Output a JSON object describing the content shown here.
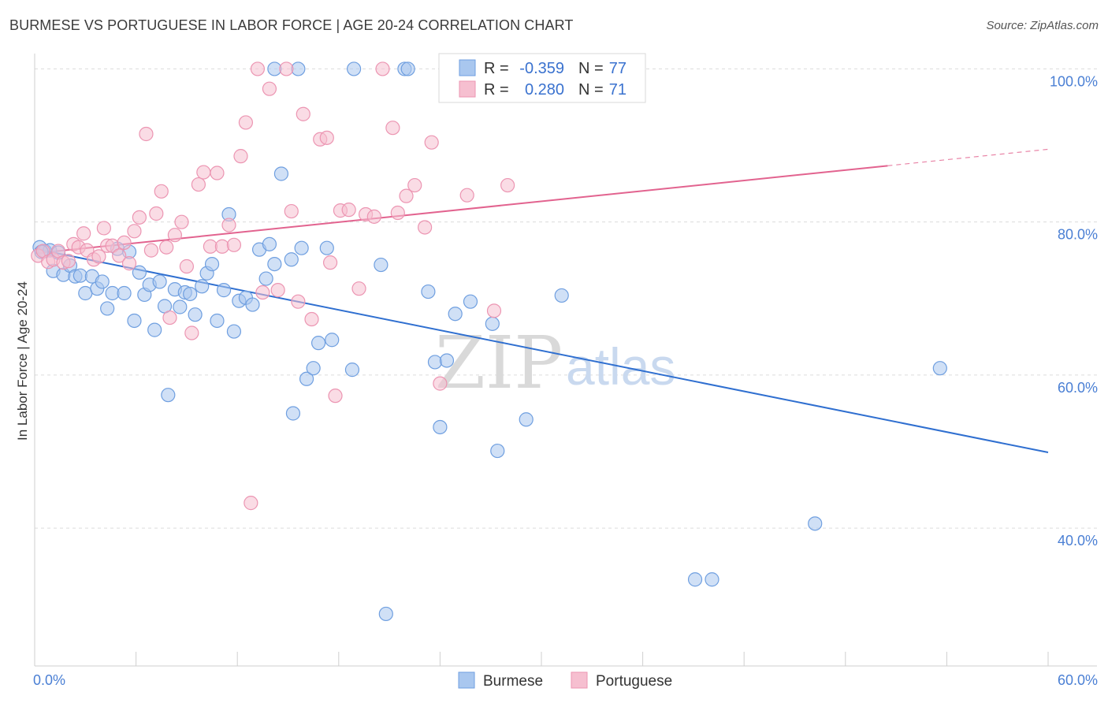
{
  "header": {
    "title": "BURMESE VS PORTUGUESE IN LABOR FORCE | AGE 20-24 CORRELATION CHART",
    "source": "Source: ZipAtlas.com"
  },
  "watermark": {
    "zip": "ZIP",
    "atlas": "atlas"
  },
  "legend_box": {
    "rows": [
      {
        "r_label": "R =",
        "r_value": "-0.359",
        "n_label": "N =",
        "n_value": "77"
      },
      {
        "r_label": "R =",
        "r_value": "0.280",
        "n_label": "N =",
        "n_value": "71"
      }
    ]
  },
  "bottom_legend": {
    "items": [
      "Burmese",
      "Portuguese"
    ]
  },
  "chart_data": {
    "type": "scatter",
    "title": "BURMESE VS PORTUGUESE IN LABOR FORCE | AGE 20-24 CORRELATION CHART",
    "xlabel": "",
    "ylabel": "In Labor Force | Age 20-24",
    "xlim": [
      0,
      60
    ],
    "ylim": [
      22,
      102
    ],
    "x_tick_labels": [
      "0.0%",
      "60.0%"
    ],
    "y_ticks": [
      40,
      60,
      80,
      100
    ],
    "y_tick_labels": [
      "40.0%",
      "60.0%",
      "80.0%",
      "100.0%"
    ],
    "grid": true,
    "colors": {
      "burmese_fill": "#a9c7ef",
      "burmese_stroke": "#6f9fe0",
      "burmese_line": "#2f6fd0",
      "portuguese_fill": "#f6bfd0",
      "portuguese_stroke": "#ec95b2",
      "portuguese_line": "#e2638f"
    },
    "series": [
      {
        "name": "Burmese",
        "trend": {
          "x": [
            0,
            60
          ],
          "y": [
            76.5,
            49.9
          ],
          "dashed_after": null
        },
        "points": [
          [
            0.3,
            76.7
          ],
          [
            0.6,
            76.2
          ],
          [
            0.9,
            76.3
          ],
          [
            1.1,
            73.6
          ],
          [
            1.4,
            76.0
          ],
          [
            1.7,
            73.1
          ],
          [
            2.1,
            74.3
          ],
          [
            2.4,
            72.9
          ],
          [
            2.7,
            73.0
          ],
          [
            3.0,
            70.7
          ],
          [
            3.4,
            72.9
          ],
          [
            3.7,
            71.3
          ],
          [
            4.0,
            72.2
          ],
          [
            4.3,
            68.7
          ],
          [
            4.6,
            70.7
          ],
          [
            4.9,
            76.5
          ],
          [
            5.3,
            70.7
          ],
          [
            5.6,
            76.1
          ],
          [
            5.9,
            67.1
          ],
          [
            6.2,
            73.4
          ],
          [
            6.5,
            70.5
          ],
          [
            6.8,
            71.8
          ],
          [
            7.1,
            65.9
          ],
          [
            7.4,
            72.2
          ],
          [
            7.7,
            69.0
          ],
          [
            7.9,
            57.4
          ],
          [
            8.3,
            71.2
          ],
          [
            8.6,
            68.9
          ],
          [
            8.9,
            70.8
          ],
          [
            9.2,
            70.6
          ],
          [
            9.5,
            67.9
          ],
          [
            9.9,
            71.6
          ],
          [
            10.2,
            73.3
          ],
          [
            10.5,
            74.5
          ],
          [
            10.8,
            67.1
          ],
          [
            11.2,
            71.1
          ],
          [
            11.5,
            81.0
          ],
          [
            11.8,
            65.7
          ],
          [
            12.1,
            69.7
          ],
          [
            12.5,
            70.1
          ],
          [
            12.9,
            69.2
          ],
          [
            13.3,
            76.4
          ],
          [
            13.7,
            72.6
          ],
          [
            13.9,
            77.1
          ],
          [
            14.2,
            74.5
          ],
          [
            14.2,
            100.0
          ],
          [
            14.6,
            86.3
          ],
          [
            15.2,
            75.1
          ],
          [
            15.3,
            55.0
          ],
          [
            15.6,
            100.0
          ],
          [
            15.8,
            76.6
          ],
          [
            16.1,
            59.5
          ],
          [
            16.5,
            60.9
          ],
          [
            16.8,
            64.2
          ],
          [
            17.3,
            76.6
          ],
          [
            17.6,
            64.6
          ],
          [
            18.8,
            60.7
          ],
          [
            18.9,
            100.0
          ],
          [
            20.5,
            74.4
          ],
          [
            20.8,
            28.8
          ],
          [
            21.9,
            100.0
          ],
          [
            23.3,
            70.9
          ],
          [
            23.7,
            61.7
          ],
          [
            24.0,
            53.2
          ],
          [
            24.4,
            61.9
          ],
          [
            24.9,
            68.0
          ],
          [
            25.8,
            69.6
          ],
          [
            27.1,
            66.7
          ],
          [
            27.4,
            50.1
          ],
          [
            29.1,
            54.2
          ],
          [
            31.2,
            70.4
          ],
          [
            39.1,
            33.3
          ],
          [
            40.1,
            33.3
          ],
          [
            46.2,
            40.6
          ],
          [
            53.6,
            60.9
          ],
          [
            0.4,
            76.1
          ],
          [
            22.1,
            100.0
          ]
        ]
      },
      {
        "name": "Portuguese",
        "trend": {
          "x": [
            0,
            60
          ],
          "y": [
            75.9,
            89.5
          ],
          "dashed_after": 50.5
        },
        "points": [
          [
            0.2,
            75.6
          ],
          [
            0.5,
            76.2
          ],
          [
            0.8,
            74.8
          ],
          [
            1.1,
            75.1
          ],
          [
            1.4,
            76.2
          ],
          [
            1.7,
            74.7
          ],
          [
            2.0,
            74.9
          ],
          [
            2.3,
            77.1
          ],
          [
            2.6,
            76.7
          ],
          [
            2.9,
            78.5
          ],
          [
            3.1,
            76.3
          ],
          [
            3.5,
            75.1
          ],
          [
            3.8,
            75.5
          ],
          [
            4.1,
            79.2
          ],
          [
            4.3,
            76.9
          ],
          [
            4.6,
            76.9
          ],
          [
            5.0,
            75.6
          ],
          [
            5.3,
            77.3
          ],
          [
            5.6,
            74.6
          ],
          [
            5.9,
            78.8
          ],
          [
            6.2,
            80.6
          ],
          [
            6.6,
            91.5
          ],
          [
            6.9,
            76.3
          ],
          [
            7.2,
            81.1
          ],
          [
            7.5,
            84.0
          ],
          [
            7.8,
            76.7
          ],
          [
            8.0,
            67.5
          ],
          [
            8.3,
            78.3
          ],
          [
            8.7,
            80.0
          ],
          [
            9.0,
            74.2
          ],
          [
            9.3,
            65.5
          ],
          [
            9.7,
            84.9
          ],
          [
            10.0,
            86.5
          ],
          [
            10.4,
            76.8
          ],
          [
            10.8,
            86.4
          ],
          [
            11.1,
            76.8
          ],
          [
            11.5,
            79.6
          ],
          [
            11.8,
            77.0
          ],
          [
            12.2,
            88.6
          ],
          [
            12.5,
            93.0
          ],
          [
            12.8,
            43.3
          ],
          [
            13.2,
            100.0
          ],
          [
            13.5,
            70.8
          ],
          [
            13.9,
            97.4
          ],
          [
            14.4,
            71.1
          ],
          [
            14.9,
            100.0
          ],
          [
            15.2,
            81.4
          ],
          [
            15.6,
            69.6
          ],
          [
            15.9,
            94.1
          ],
          [
            16.4,
            67.3
          ],
          [
            16.9,
            90.8
          ],
          [
            17.3,
            91.0
          ],
          [
            17.5,
            74.7
          ],
          [
            17.8,
            57.3
          ],
          [
            18.1,
            81.5
          ],
          [
            18.6,
            81.6
          ],
          [
            19.2,
            71.3
          ],
          [
            19.6,
            81.0
          ],
          [
            20.1,
            80.7
          ],
          [
            20.6,
            100.0
          ],
          [
            21.2,
            92.3
          ],
          [
            21.5,
            81.2
          ],
          [
            22.0,
            83.4
          ],
          [
            22.5,
            84.8
          ],
          [
            23.1,
            79.3
          ],
          [
            23.5,
            90.4
          ],
          [
            24.0,
            58.9
          ],
          [
            24.6,
            100.0
          ],
          [
            25.6,
            83.5
          ],
          [
            27.2,
            68.4
          ],
          [
            28.0,
            84.8
          ]
        ]
      }
    ]
  }
}
